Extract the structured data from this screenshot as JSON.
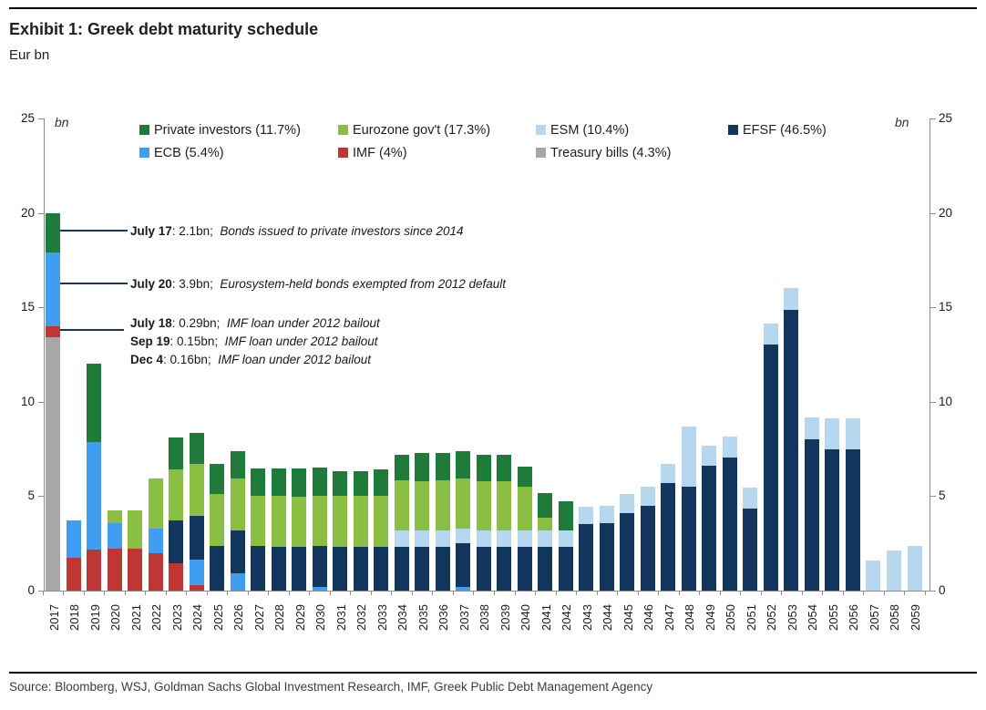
{
  "header": {
    "title": "Exhibit 1: Greek debt maturity schedule",
    "subtitle": "Eur bn"
  },
  "footer": {
    "source": "Source: Bloomberg, WSJ, Goldman Sachs Global Investment Research, IMF, Greek Public Debt Management Agency"
  },
  "legend": {
    "items": [
      {
        "label": "Private investors (11.7%)",
        "color": "#1e7b3a"
      },
      {
        "label": "Eurozone gov't (17.3%)",
        "color": "#8bbf44"
      },
      {
        "label": "ESM (10.4%)",
        "color": "#b7d7ee"
      },
      {
        "label": "EFSF (46.5%)",
        "color": "#12365e"
      },
      {
        "label": "ECB (5.4%)",
        "color": "#3f9ef2"
      },
      {
        "label": "IMF (4%)",
        "color": "#bf3735"
      },
      {
        "label": "Treasury bills (4.3%)",
        "color": "#a7a7a7"
      }
    ]
  },
  "annotations": [
    {
      "label": "July 17",
      "value": "2.1bn;",
      "desc": "Bonds issued to private investors since 2014",
      "line_value": 19.1
    },
    {
      "label": "July 20",
      "value": "3.9bn;",
      "desc": "Eurosystem-held bonds exempted from 2012 default",
      "line_value": 16.3
    },
    {
      "label": "July 18",
      "value": "0.29bn;",
      "desc": "IMF loan under 2012 bailout",
      "line_value": 13.85
    },
    {
      "label": "Sep 19",
      "value": "0.15bn;",
      "desc": "IMF loan under 2012 bailout",
      "line_value": null
    },
    {
      "label": "Dec 4",
      "value": "0.16bn;",
      "desc": "IMF loan under 2012 bailout",
      "line_value": null
    }
  ],
  "chart_data": {
    "type": "bar",
    "stacked": true,
    "title": "Exhibit 1: Greek debt maturity schedule",
    "ylabel": "bn",
    "ylim": [
      0,
      25
    ],
    "yticks": [
      0,
      5,
      10,
      15,
      20,
      25
    ],
    "grid": false,
    "legend_position": "top-inside",
    "categories": [
      "2017",
      "2018",
      "2019",
      "2020",
      "2021",
      "2022",
      "2023",
      "2024",
      "2025",
      "2026",
      "2027",
      "2028",
      "2029",
      "2030",
      "2031",
      "2032",
      "2033",
      "2034",
      "2035",
      "2036",
      "2037",
      "2038",
      "2039",
      "2040",
      "2041",
      "2042",
      "2043",
      "2044",
      "2045",
      "2046",
      "2047",
      "2048",
      "2049",
      "2050",
      "2051",
      "2052",
      "2053",
      "2054",
      "2055",
      "2056",
      "2057",
      "2058",
      "2059"
    ],
    "series": [
      {
        "name": "Treasury bills (4.3%)",
        "color": "#a7a7a7",
        "values": [
          13.4,
          0,
          0,
          0,
          0,
          0,
          0,
          0,
          0,
          0,
          0,
          0,
          0,
          0,
          0,
          0,
          0,
          0,
          0,
          0,
          0,
          0,
          0,
          0,
          0,
          0,
          0,
          0,
          0,
          0,
          0,
          0,
          0,
          0,
          0,
          0,
          0,
          0,
          0,
          0,
          0,
          0,
          0
        ]
      },
      {
        "name": "IMF (4%)",
        "color": "#bf3735",
        "values": [
          0.6,
          1.75,
          2.15,
          2.2,
          2.2,
          2.0,
          1.45,
          0.3,
          0,
          0,
          0,
          0,
          0,
          0,
          0,
          0,
          0,
          0,
          0,
          0,
          0,
          0,
          0,
          0,
          0,
          0,
          0,
          0,
          0,
          0,
          0,
          0,
          0,
          0,
          0,
          0,
          0,
          0,
          0,
          0,
          0,
          0,
          0
        ]
      },
      {
        "name": "ECB (5.4%)",
        "color": "#3f9ef2",
        "values": [
          3.9,
          1.95,
          5.7,
          1.35,
          0,
          1.3,
          0,
          1.35,
          0,
          0.9,
          0,
          0,
          0,
          0.2,
          0,
          0,
          0,
          0,
          0,
          0,
          0.2,
          0,
          0,
          0,
          0,
          0,
          0,
          0,
          0,
          0,
          0,
          0,
          0,
          0,
          0,
          0,
          0,
          0,
          0,
          0,
          0,
          0,
          0
        ]
      },
      {
        "name": "EFSF (46.5%)",
        "color": "#12365e",
        "values": [
          0,
          0,
          0,
          0,
          0,
          0,
          2.25,
          2.3,
          2.35,
          2.3,
          2.35,
          2.3,
          2.3,
          2.15,
          2.3,
          2.3,
          2.3,
          2.3,
          2.3,
          2.3,
          2.3,
          2.3,
          2.3,
          2.3,
          2.3,
          2.3,
          3.5,
          3.55,
          4.1,
          4.5,
          5.7,
          5.5,
          6.6,
          7.05,
          4.35,
          13.05,
          14.85,
          8.0,
          7.5,
          7.5,
          0,
          0,
          0
        ]
      },
      {
        "name": "ESM (10.4%)",
        "color": "#b7d7ee",
        "values": [
          0,
          0,
          0,
          0,
          0,
          0,
          0,
          0,
          0,
          0,
          0,
          0,
          0,
          0,
          0,
          0,
          0,
          0.9,
          0.9,
          0.9,
          0.8,
          0.9,
          0.9,
          0.9,
          0.9,
          0.9,
          0.95,
          0.95,
          1.0,
          1.0,
          1.0,
          3.2,
          1.05,
          1.1,
          1.1,
          1.1,
          1.15,
          1.15,
          1.6,
          1.6,
          1.6,
          2.1,
          2.35
        ]
      },
      {
        "name": "Eurozone gov't (17.3%)",
        "color": "#8bbf44",
        "values": [
          0,
          0,
          0,
          0.7,
          2.05,
          2.65,
          2.7,
          2.75,
          2.75,
          2.75,
          2.65,
          2.7,
          2.65,
          2.65,
          2.7,
          2.7,
          2.7,
          2.65,
          2.6,
          2.65,
          2.65,
          2.6,
          2.6,
          2.3,
          0.65,
          0,
          0,
          0,
          0,
          0,
          0,
          0,
          0,
          0,
          0,
          0,
          0,
          0,
          0,
          0,
          0,
          0,
          0
        ]
      },
      {
        "name": "Private investors (11.7%)",
        "color": "#1e7b3a",
        "values": [
          2.1,
          0,
          4.15,
          0,
          0,
          0,
          1.7,
          1.65,
          1.6,
          1.45,
          1.45,
          1.45,
          1.5,
          1.5,
          1.3,
          1.3,
          1.4,
          1.35,
          1.5,
          1.45,
          1.45,
          1.4,
          1.4,
          1.05,
          1.3,
          1.55,
          0,
          0,
          0,
          0,
          0,
          0,
          0,
          0,
          0,
          0,
          0,
          0,
          0,
          0,
          0,
          0,
          0
        ]
      }
    ]
  }
}
